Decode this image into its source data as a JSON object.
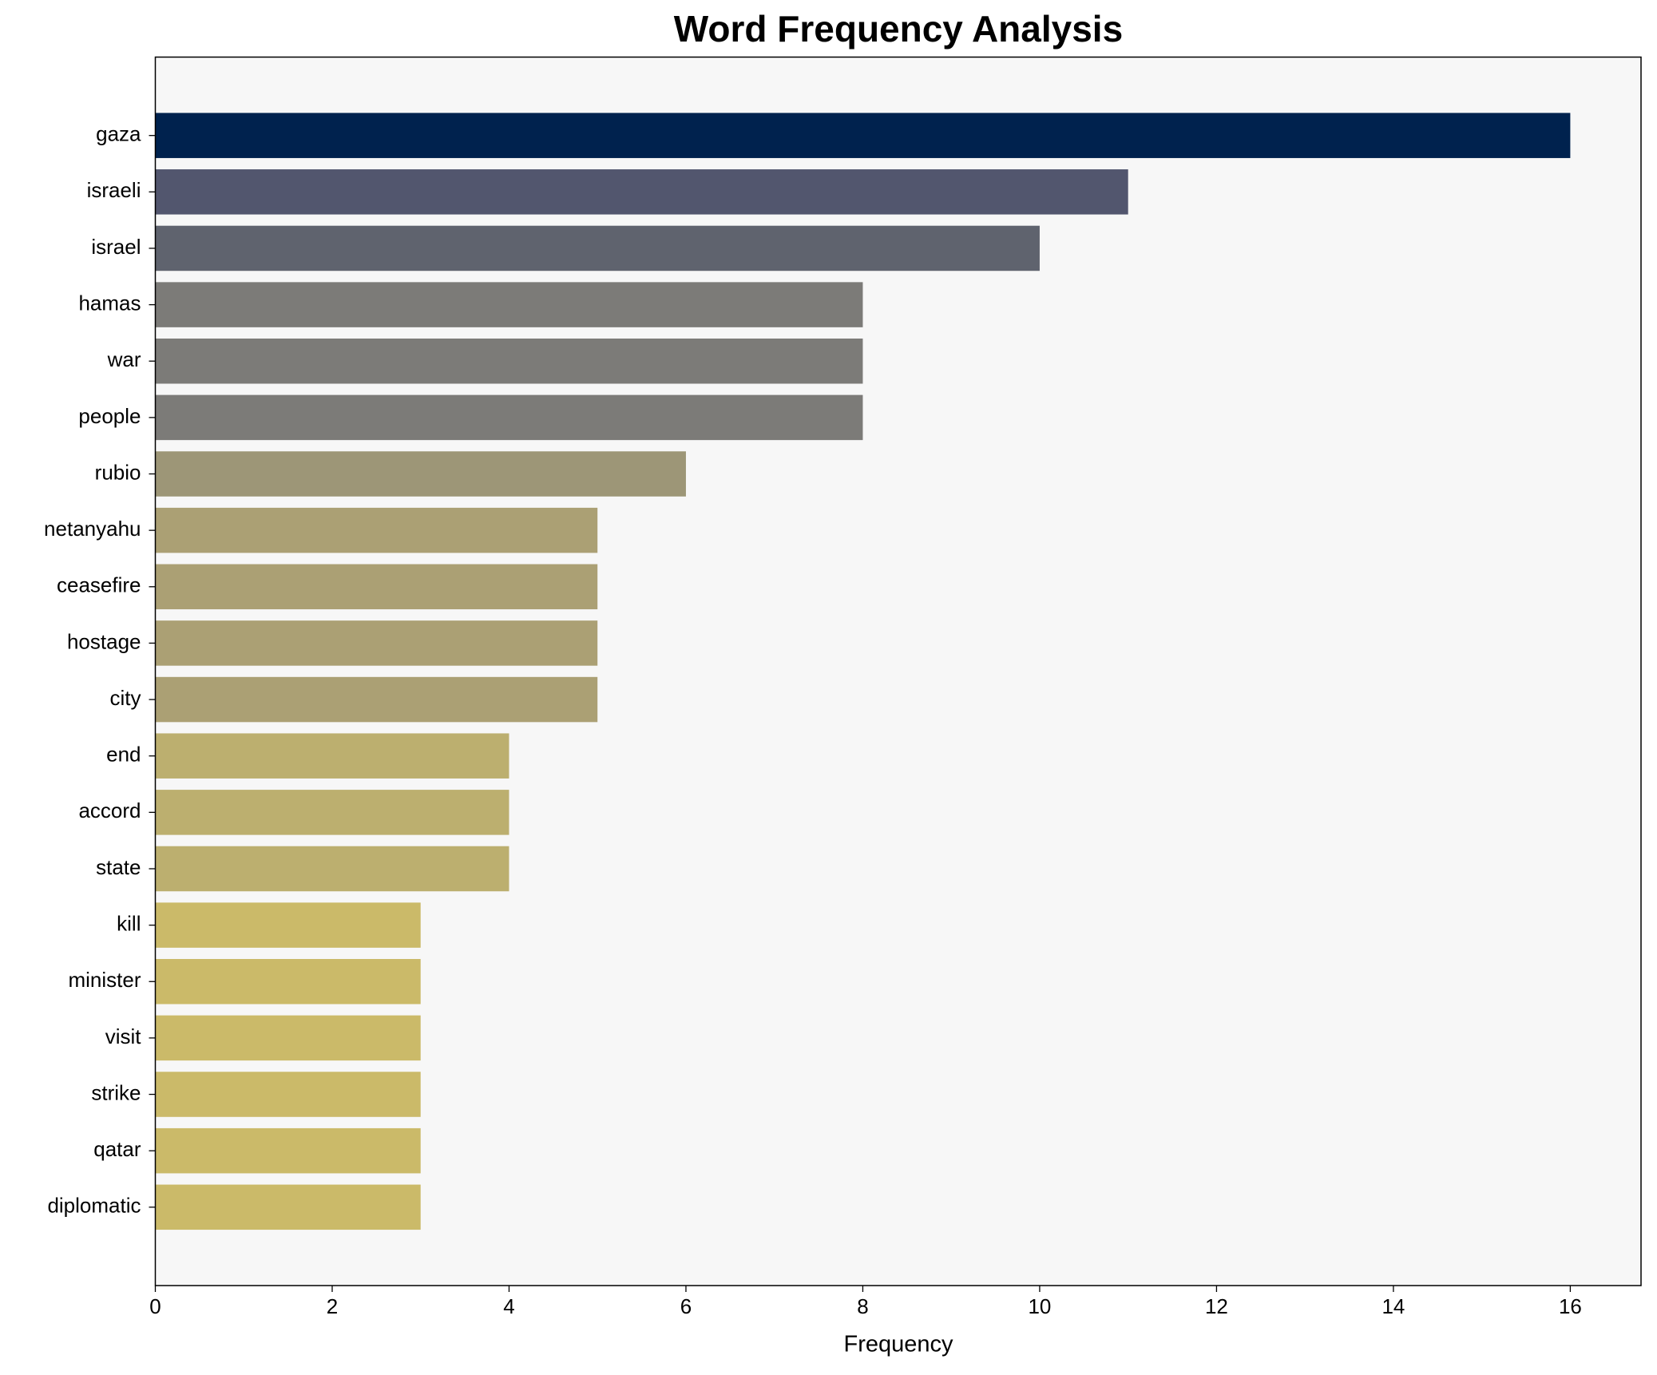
{
  "chart_data": {
    "type": "barh",
    "title": "Word Frequency Analysis",
    "xlabel": "Frequency",
    "categories": [
      "gaza",
      "israeli",
      "israel",
      "hamas",
      "war",
      "people",
      "rubio",
      "netanyahu",
      "ceasefire",
      "hostage",
      "city",
      "end",
      "accord",
      "state",
      "kill",
      "minister",
      "visit",
      "strike",
      "qatar",
      "diplomatic"
    ],
    "values": [
      16,
      11,
      10,
      8,
      8,
      8,
      6,
      5,
      5,
      5,
      5,
      4,
      4,
      4,
      3,
      3,
      3,
      3,
      3,
      3
    ],
    "colors": [
      "#00224e",
      "#52566e",
      "#5f636e",
      "#7c7b78",
      "#7c7b78",
      "#7c7b78",
      "#9d9677",
      "#aba074",
      "#aba074",
      "#aba074",
      "#aba074",
      "#bcaf6f",
      "#bcaf6f",
      "#bcaf6f",
      "#cbba69",
      "#cbba69",
      "#cbba69",
      "#cbba69",
      "#cbba69",
      "#cbba69"
    ],
    "xlim": [
      0,
      16.8
    ],
    "xticks": [
      0,
      2,
      4,
      6,
      8,
      10,
      12,
      14,
      16
    ],
    "background": "#f7f7f7"
  }
}
